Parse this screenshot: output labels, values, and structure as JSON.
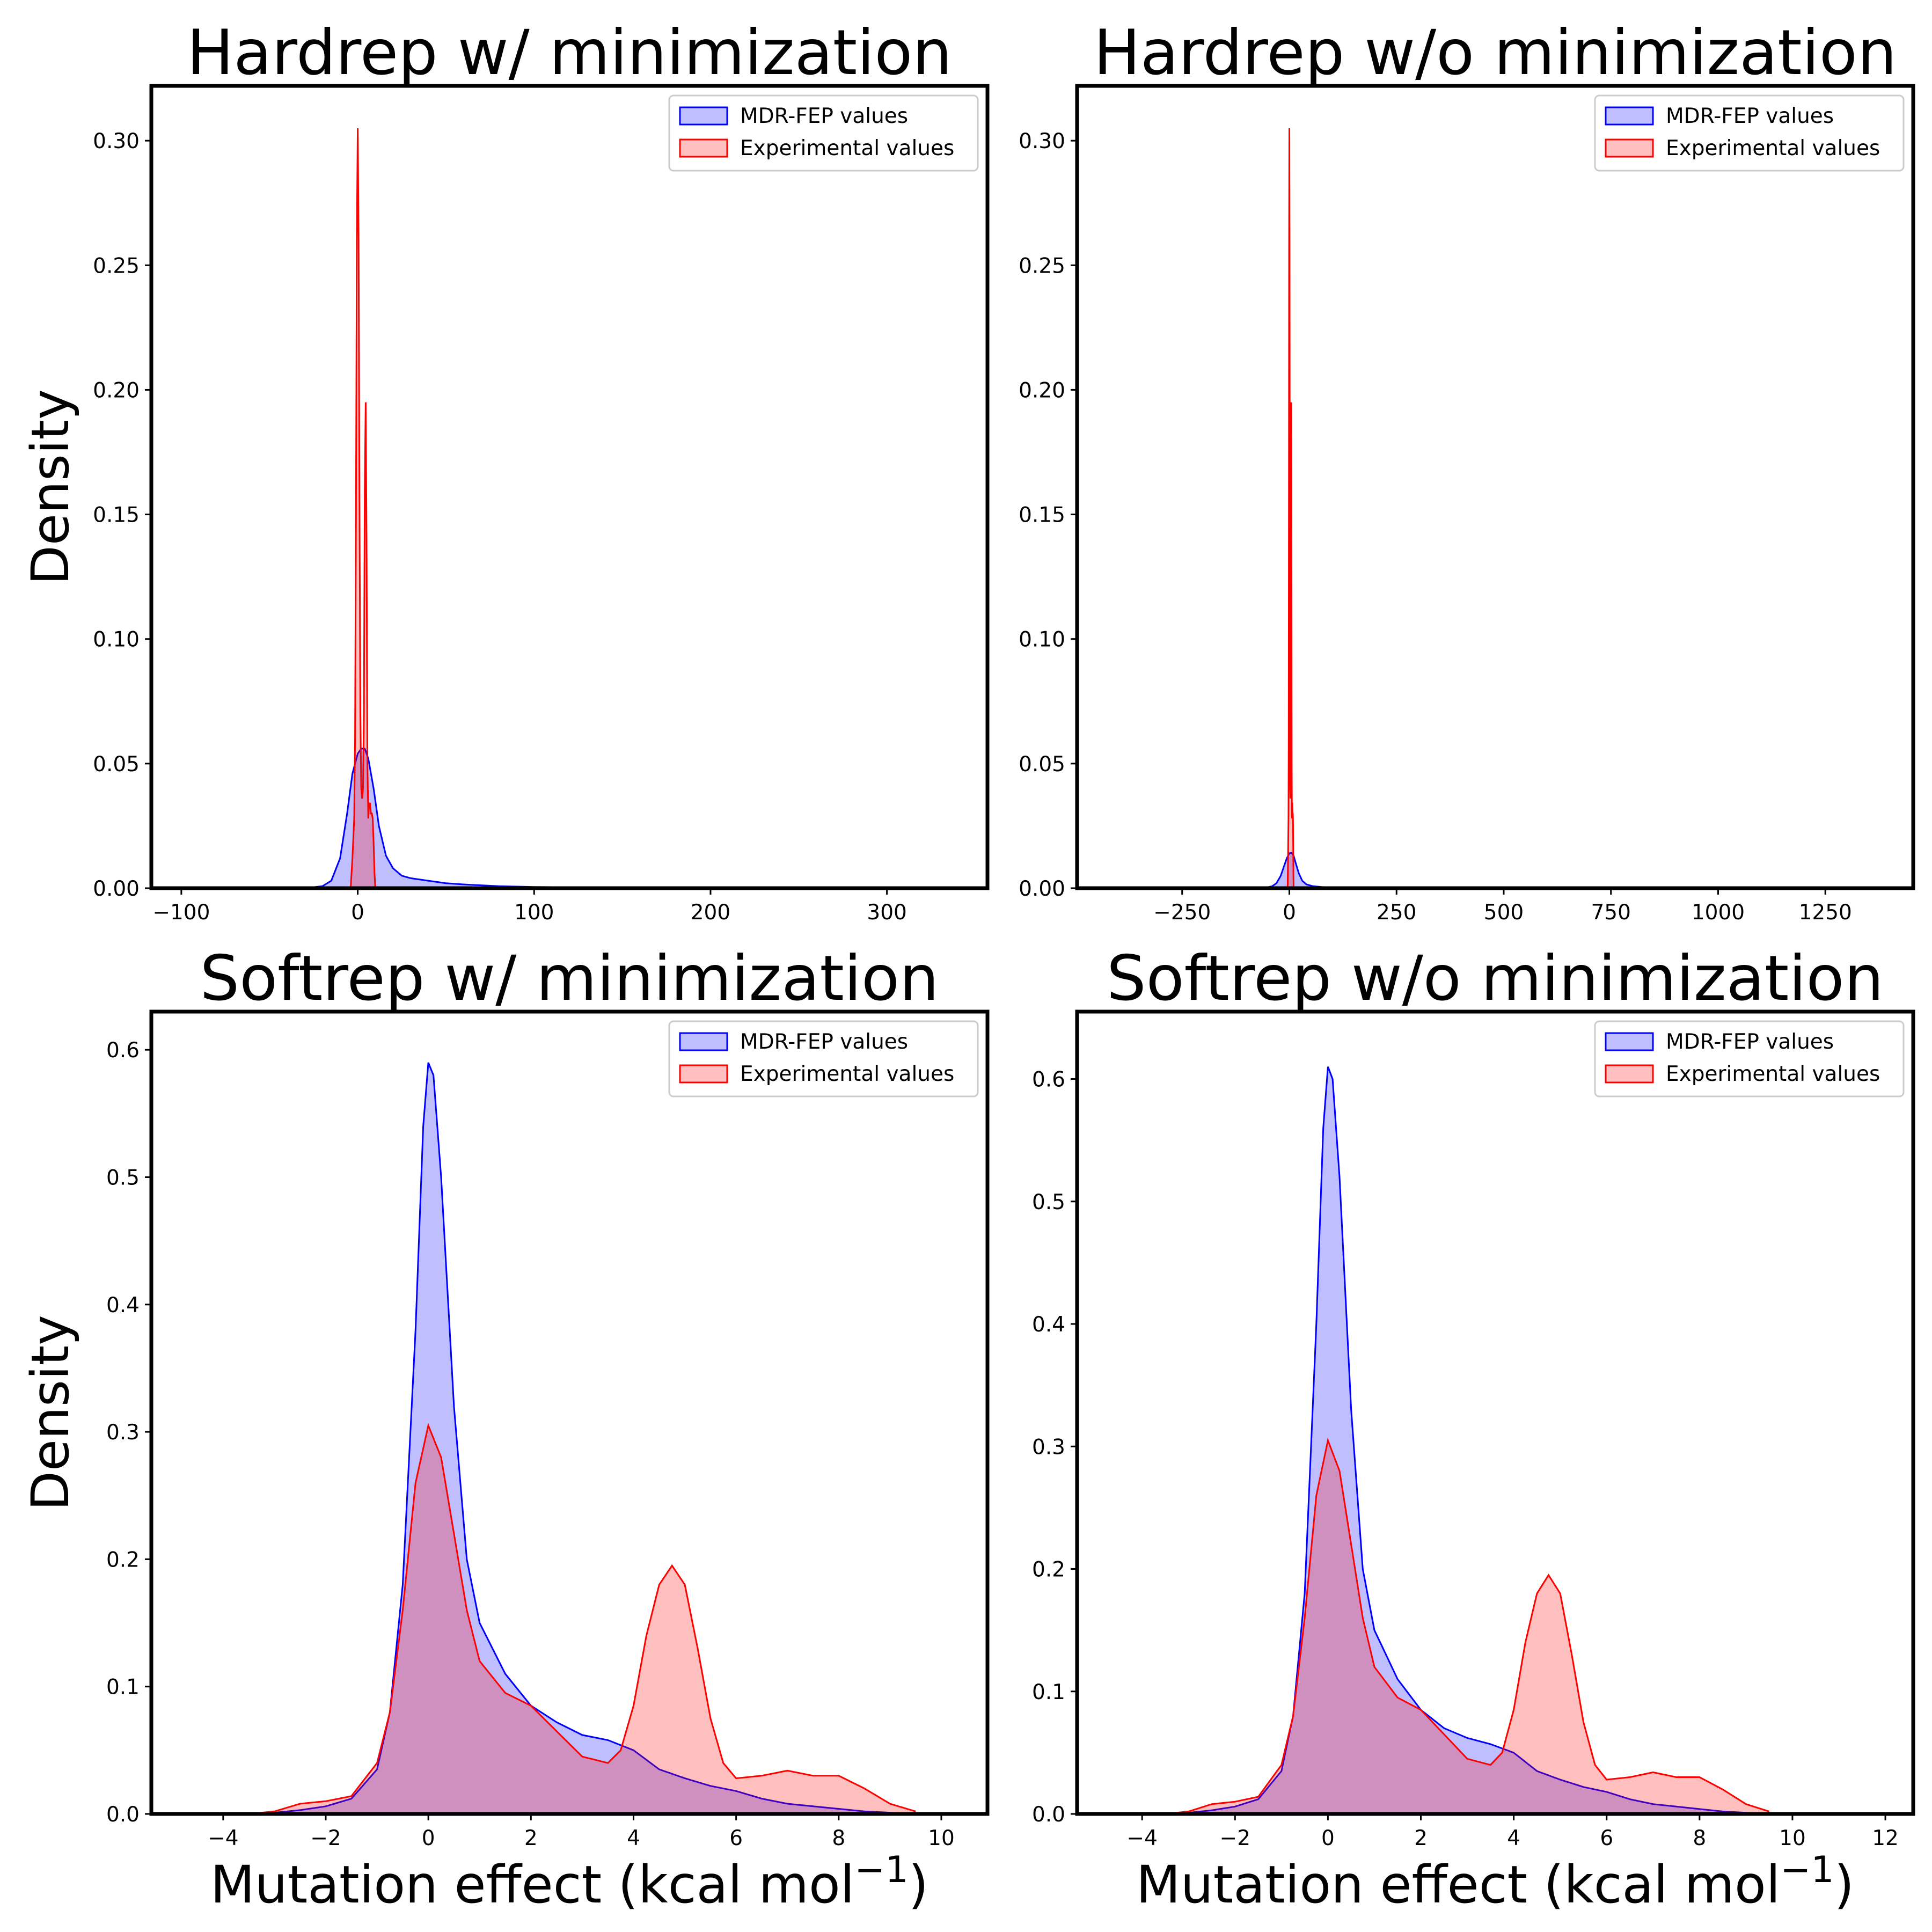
{
  "colors": {
    "mdr": "#0000ff",
    "exp": "#ff0000"
  },
  "chart_data": [
    {
      "type": "area",
      "title": "Hardrep w/ minimization",
      "xlabel": "",
      "ylabel": "Density",
      "xlim": [
        -117,
        357
      ],
      "ylim": [
        0,
        0.322
      ],
      "xticks": [
        -100,
        0,
        100,
        200,
        300
      ],
      "yticks": [
        0.0,
        0.05,
        0.1,
        0.15,
        0.2,
        0.25,
        0.3
      ],
      "ytick_decimals": 2,
      "legend": {
        "position": "top-right",
        "entries": [
          "MDR-FEP values",
          "Experimental values"
        ]
      },
      "series": [
        {
          "name": "MDR-FEP values",
          "color": "#0000ff",
          "x": [
            -30,
            -20,
            -15,
            -10,
            -6,
            -3,
            0,
            2,
            4,
            6,
            9,
            12,
            16,
            20,
            25,
            30,
            40,
            50,
            60,
            80,
            100,
            150,
            200,
            250,
            300,
            340
          ],
          "y": [
            0,
            0.0008,
            0.003,
            0.012,
            0.03,
            0.046,
            0.054,
            0.056,
            0.056,
            0.052,
            0.04,
            0.025,
            0.013,
            0.008,
            0.005,
            0.004,
            0.003,
            0.002,
            0.0015,
            0.0008,
            0.0005,
            0.0002,
            0.0001,
            0.0001,
            0,
            0
          ]
        },
        {
          "name": "Experimental values",
          "color": "#ff0000",
          "x": [
            -4,
            -3,
            -2,
            -1.5,
            -1,
            -0.5,
            0,
            0.5,
            1,
            1.5,
            2,
            2.5,
            3,
            3.5,
            4,
            4.5,
            5,
            5.5,
            6,
            6.5,
            7,
            7.5,
            8,
            8.5,
            9,
            9.5,
            10
          ],
          "y": [
            0,
            0.012,
            0.028,
            0.06,
            0.15,
            0.26,
            0.305,
            0.26,
            0.15,
            0.07,
            0.04,
            0.036,
            0.04,
            0.07,
            0.16,
            0.195,
            0.14,
            0.05,
            0.028,
            0.034,
            0.034,
            0.03,
            0.03,
            0.028,
            0.018,
            0.006,
            0
          ]
        }
      ]
    },
    {
      "type": "area",
      "title": "Hardrep w/o minimization",
      "xlabel": "",
      "ylabel": "",
      "xlim": [
        -495,
        1455
      ],
      "ylim": [
        0,
        0.322
      ],
      "xticks": [
        -250,
        0,
        250,
        500,
        750,
        1000,
        1250
      ],
      "yticks": [
        0.0,
        0.05,
        0.1,
        0.15,
        0.2,
        0.25,
        0.3
      ],
      "ytick_decimals": 2,
      "legend": {
        "position": "top-right",
        "entries": [
          "MDR-FEP values",
          "Experimental values"
        ]
      },
      "series": [
        {
          "name": "MDR-FEP values",
          "color": "#0000ff",
          "x": [
            -60,
            -40,
            -30,
            -20,
            -12,
            -6,
            0,
            5,
            10,
            15,
            22,
            30,
            40,
            55,
            75,
            100,
            150,
            250,
            400,
            600,
            900,
            1200,
            1400
          ],
          "y": [
            0,
            0.0008,
            0.002,
            0.005,
            0.009,
            0.012,
            0.014,
            0.0142,
            0.013,
            0.01,
            0.006,
            0.003,
            0.0015,
            0.0008,
            0.0005,
            0.0003,
            0.0002,
            0.0001,
            5e-05,
            0,
            0,
            0,
            0
          ]
        },
        {
          "name": "Experimental values",
          "color": "#ff0000",
          "x": [
            -4,
            -3,
            -2,
            -1.5,
            -1,
            -0.5,
            0,
            0.5,
            1,
            1.5,
            2,
            2.5,
            3,
            3.5,
            4,
            4.5,
            5,
            5.5,
            6,
            6.5,
            7,
            7.5,
            8,
            8.5,
            9,
            9.5,
            10
          ],
          "y": [
            0,
            0.012,
            0.028,
            0.06,
            0.15,
            0.26,
            0.305,
            0.26,
            0.15,
            0.07,
            0.04,
            0.036,
            0.04,
            0.07,
            0.16,
            0.195,
            0.14,
            0.05,
            0.028,
            0.034,
            0.034,
            0.03,
            0.03,
            0.028,
            0.018,
            0.006,
            0
          ]
        }
      ]
    },
    {
      "type": "area",
      "title": "Softrep w/ minimization",
      "xlabel": "Mutation effect (kcal mol",
      "xlabel_sup": "−1",
      "xlabel_end": ")",
      "ylabel": "Density",
      "xlim": [
        -5.4,
        10.9
      ],
      "ylim": [
        0,
        0.63
      ],
      "xticks": [
        -4,
        -2,
        0,
        2,
        4,
        6,
        8,
        10
      ],
      "yticks": [
        0.0,
        0.1,
        0.2,
        0.3,
        0.4,
        0.5,
        0.6
      ],
      "ytick_decimals": 1,
      "legend": {
        "position": "top-right",
        "entries": [
          "MDR-FEP values",
          "Experimental values"
        ]
      },
      "series": [
        {
          "name": "MDR-FEP values",
          "color": "#0000ff",
          "x": [
            -3.5,
            -3,
            -2.5,
            -2,
            -1.5,
            -1,
            -0.75,
            -0.5,
            -0.25,
            -0.1,
            0,
            0.1,
            0.25,
            0.5,
            0.75,
            1,
            1.5,
            2,
            2.5,
            3,
            3.5,
            4,
            4.5,
            5,
            5.5,
            6,
            6.5,
            7,
            7.5,
            8,
            8.5,
            9,
            9.5
          ],
          "y": [
            0,
            0.001,
            0.003,
            0.006,
            0.012,
            0.035,
            0.08,
            0.18,
            0.38,
            0.54,
            0.59,
            0.58,
            0.5,
            0.32,
            0.2,
            0.15,
            0.11,
            0.085,
            0.072,
            0.062,
            0.058,
            0.05,
            0.035,
            0.028,
            0.022,
            0.018,
            0.012,
            0.008,
            0.006,
            0.004,
            0.002,
            0.001,
            0
          ]
        },
        {
          "name": "Experimental values",
          "color": "#ff0000",
          "x": [
            -3.5,
            -3,
            -2.5,
            -2,
            -1.5,
            -1,
            -0.75,
            -0.5,
            -0.25,
            0,
            0.25,
            0.5,
            0.75,
            1,
            1.5,
            2,
            2.5,
            3,
            3.5,
            3.75,
            4,
            4.25,
            4.5,
            4.75,
            5,
            5.25,
            5.5,
            5.75,
            6,
            6.5,
            7,
            7.5,
            8,
            8.5,
            9,
            9.5
          ],
          "y": [
            0,
            0.002,
            0.008,
            0.01,
            0.014,
            0.04,
            0.08,
            0.16,
            0.26,
            0.305,
            0.28,
            0.22,
            0.16,
            0.12,
            0.095,
            0.085,
            0.065,
            0.045,
            0.04,
            0.05,
            0.085,
            0.14,
            0.18,
            0.195,
            0.18,
            0.13,
            0.075,
            0.04,
            0.028,
            0.03,
            0.034,
            0.03,
            0.03,
            0.02,
            0.008,
            0.002
          ]
        }
      ]
    },
    {
      "type": "area",
      "title": "Softrep w/o minimization",
      "xlabel": "Mutation effect (kcal mol",
      "xlabel_sup": "−1",
      "xlabel_end": ")",
      "ylabel": "",
      "xlim": [
        -5.4,
        12.6
      ],
      "ylim": [
        0,
        0.655
      ],
      "xticks": [
        -4,
        -2,
        0,
        2,
        4,
        6,
        8,
        10,
        12
      ],
      "yticks": [
        0.0,
        0.1,
        0.2,
        0.3,
        0.4,
        0.5,
        0.6
      ],
      "ytick_decimals": 1,
      "legend": {
        "position": "top-right",
        "entries": [
          "MDR-FEP values",
          "Experimental values"
        ]
      },
      "series": [
        {
          "name": "MDR-FEP values",
          "color": "#0000ff",
          "x": [
            -3.5,
            -3,
            -2.5,
            -2,
            -1.5,
            -1,
            -0.75,
            -0.5,
            -0.25,
            -0.1,
            0,
            0.1,
            0.25,
            0.5,
            0.75,
            1,
            1.5,
            2,
            2.5,
            3,
            3.5,
            4,
            4.5,
            5,
            5.5,
            6,
            6.5,
            7,
            7.5,
            8,
            8.5,
            9,
            9.5
          ],
          "y": [
            0,
            0.001,
            0.003,
            0.006,
            0.012,
            0.035,
            0.08,
            0.18,
            0.4,
            0.56,
            0.61,
            0.6,
            0.52,
            0.33,
            0.2,
            0.15,
            0.11,
            0.085,
            0.07,
            0.062,
            0.057,
            0.05,
            0.035,
            0.028,
            0.022,
            0.018,
            0.012,
            0.008,
            0.006,
            0.004,
            0.002,
            0.001,
            0
          ]
        },
        {
          "name": "Experimental values",
          "color": "#ff0000",
          "x": [
            -3.5,
            -3,
            -2.5,
            -2,
            -1.5,
            -1,
            -0.75,
            -0.5,
            -0.25,
            0,
            0.25,
            0.5,
            0.75,
            1,
            1.5,
            2,
            2.5,
            3,
            3.5,
            3.75,
            4,
            4.25,
            4.5,
            4.75,
            5,
            5.25,
            5.5,
            5.75,
            6,
            6.5,
            7,
            7.5,
            8,
            8.5,
            9,
            9.5
          ],
          "y": [
            0,
            0.002,
            0.008,
            0.01,
            0.014,
            0.04,
            0.08,
            0.16,
            0.26,
            0.305,
            0.28,
            0.22,
            0.16,
            0.12,
            0.095,
            0.085,
            0.065,
            0.045,
            0.04,
            0.05,
            0.085,
            0.14,
            0.18,
            0.195,
            0.18,
            0.13,
            0.075,
            0.04,
            0.028,
            0.03,
            0.034,
            0.03,
            0.03,
            0.02,
            0.008,
            0.002
          ]
        }
      ]
    }
  ]
}
